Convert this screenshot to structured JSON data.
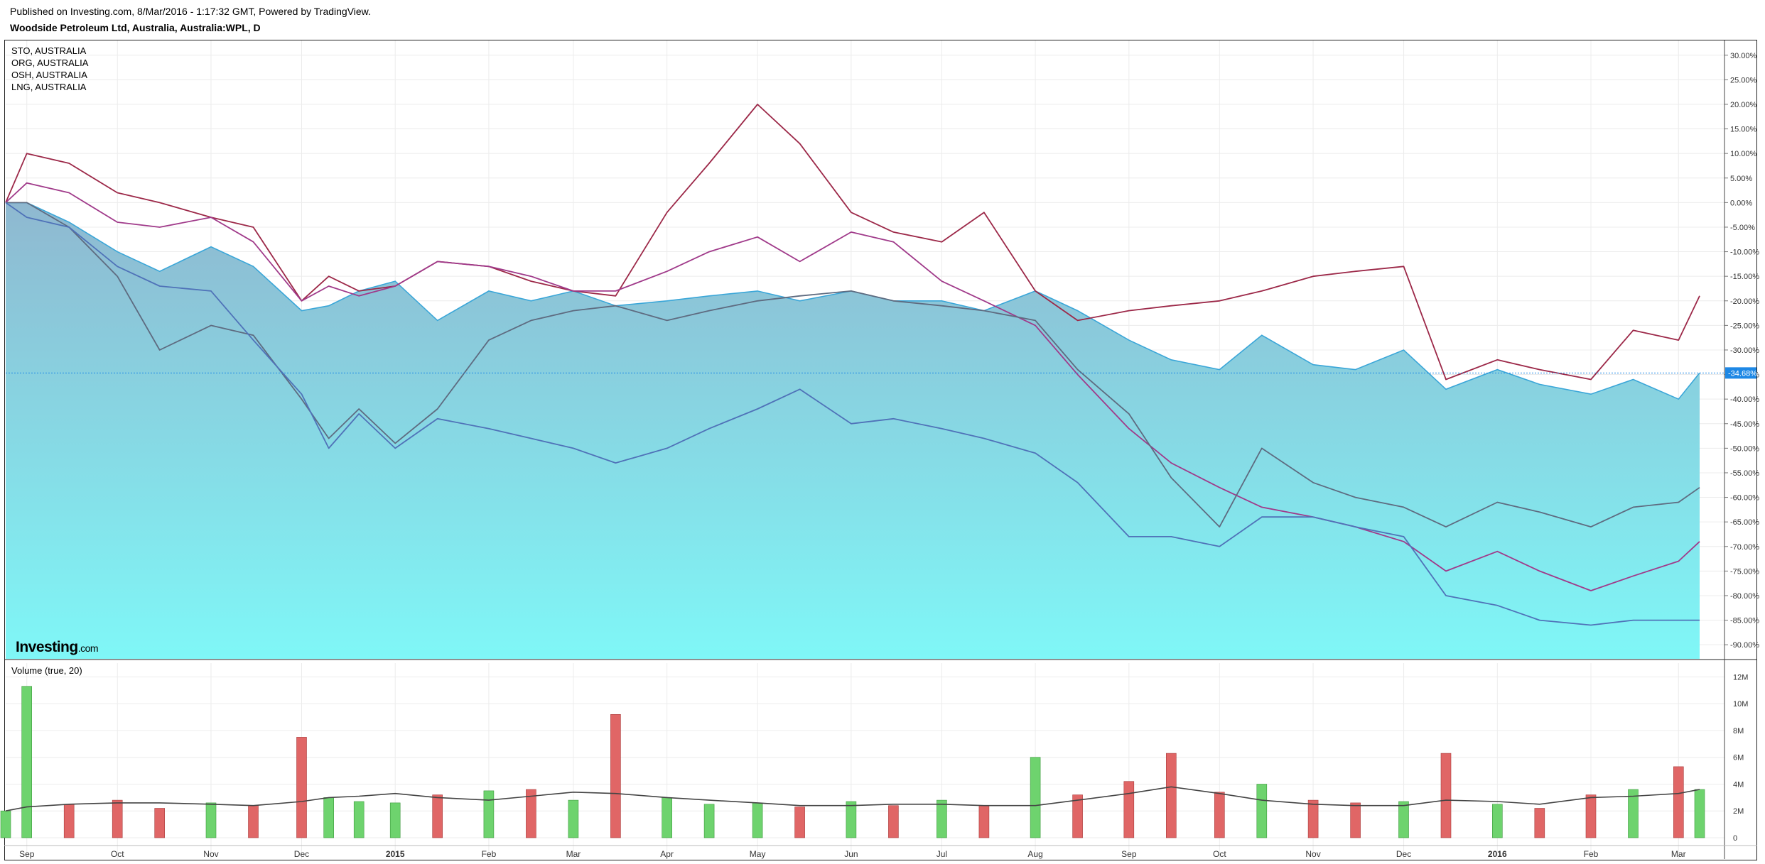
{
  "header": {
    "published": "Published on Investing.com, 8/Mar/2016 - 1:17:32 GMT, Powered by TradingView.",
    "symbol": "Woodside Petroleum Ltd, Australia, Australia:WPL, D"
  },
  "legend": [
    "STO, AUSTRALIA",
    "ORG, AUSTRALIA",
    "OSH, AUSTRALIA",
    "LNG, AUSTRALIA"
  ],
  "logo": {
    "name": "Investing",
    "suffix": ".com"
  },
  "colors": {
    "area_top": "#8fb8d0",
    "area_bottom": "#7ff7f7",
    "area_line": "#3aa6d8",
    "line_red": "#9c2848",
    "line_purple": "#a03a8a",
    "line_dark": "#5e6b80",
    "line_blue": "#4f72b8",
    "vol_up": "#6ed36e",
    "vol_down": "#e06666",
    "vol_ma": "#444444",
    "current_label": "#1e88e5"
  },
  "chart_data": [
    {
      "type": "area",
      "title": "Woodside Petroleum Ltd, Australia, Australia:WPL, D",
      "y_unit": "% change",
      "ylim": [
        -92,
        33
      ],
      "y_ticks": [
        "30.00%",
        "25.00%",
        "20.00%",
        "15.00%",
        "10.00%",
        "5.00%",
        "0.00%",
        "-5.00%",
        "-10.00%",
        "-15.00%",
        "-20.00%",
        "-25.00%",
        "-30.00%",
        "-35.00%",
        "-40.00%",
        "-45.00%",
        "-50.00%",
        "-55.00%",
        "-60.00%",
        "-65.00%",
        "-70.00%",
        "-75.00%",
        "-80.00%",
        "-85.00%",
        "-90.00%"
      ],
      "x_ticks": [
        "Sep",
        "Oct",
        "Nov",
        "Dec",
        "2015",
        "Feb",
        "Mar",
        "Apr",
        "May",
        "Jun",
        "Jul",
        "Aug",
        "Sep",
        "Oct",
        "Nov",
        "Dec",
        "2016",
        "Feb",
        "Mar"
      ],
      "current_value": "-34.68%",
      "grid": true,
      "legend_position": "top-left",
      "x": [
        "2014-08-25",
        "2014-09-01",
        "2014-09-15",
        "2014-10-01",
        "2014-10-15",
        "2014-11-01",
        "2014-11-15",
        "2014-12-01",
        "2014-12-10",
        "2014-12-20",
        "2015-01-01",
        "2015-01-15",
        "2015-02-01",
        "2015-02-15",
        "2015-03-01",
        "2015-03-15",
        "2015-04-01",
        "2015-04-15",
        "2015-05-01",
        "2015-05-15",
        "2015-06-01",
        "2015-06-15",
        "2015-07-01",
        "2015-07-15",
        "2015-08-01",
        "2015-08-15",
        "2015-09-01",
        "2015-09-15",
        "2015-10-01",
        "2015-10-15",
        "2015-11-01",
        "2015-11-15",
        "2015-12-01",
        "2015-12-15",
        "2016-01-01",
        "2016-01-15",
        "2016-02-01",
        "2016-02-15",
        "2016-03-01",
        "2016-03-08"
      ],
      "series": [
        {
          "name": "WPL",
          "values": [
            0,
            0,
            -4,
            -10,
            -14,
            -9,
            -13,
            -22,
            -21,
            -18,
            -16,
            -24,
            -18,
            -20,
            -18,
            -21,
            -20,
            -19,
            -18,
            -20,
            -18,
            -20,
            -20,
            -22,
            -18,
            -22,
            -28,
            -32,
            -34,
            -27,
            -33,
            -34,
            -30,
            -38,
            -34,
            -37,
            -39,
            -36,
            -40,
            -34.68
          ]
        },
        {
          "name": "STO, AUSTRALIA",
          "values": [
            0,
            10,
            8,
            2,
            0,
            -3,
            -5,
            -20,
            -15,
            -18,
            -17,
            -12,
            -13,
            -16,
            -18,
            -19,
            -2,
            8,
            20,
            12,
            -2,
            -6,
            -8,
            -2,
            -18,
            -24,
            -22,
            -21,
            -20,
            -18,
            -15,
            -14,
            -13,
            -36,
            -32,
            -34,
            -36,
            -26,
            -28,
            -19
          ]
        },
        {
          "name": "ORG, AUSTRALIA",
          "values": [
            0,
            4,
            2,
            -4,
            -5,
            -3,
            -8,
            -20,
            -17,
            -19,
            -17,
            -12,
            -13,
            -15,
            -18,
            -18,
            -14,
            -10,
            -7,
            -12,
            -6,
            -8,
            -16,
            -20,
            -25,
            -35,
            -46,
            -53,
            -58,
            -62,
            -64,
            -66,
            -69,
            -75,
            -71,
            -75,
            -79,
            -76,
            -73,
            -69
          ]
        },
        {
          "name": "OSH, AUSTRALIA",
          "values": [
            0,
            0,
            -5,
            -15,
            -30,
            -25,
            -27,
            -40,
            -48,
            -42,
            -49,
            -42,
            -28,
            -24,
            -22,
            -21,
            -24,
            -22,
            -20,
            -19,
            -18,
            -20,
            -21,
            -22,
            -24,
            -34,
            -43,
            -56,
            -66,
            -50,
            -57,
            -60,
            -62,
            -66,
            -61,
            -63,
            -66,
            -62,
            -61,
            -58
          ]
        },
        {
          "name": "LNG, AUSTRALIA",
          "values": [
            0,
            -3,
            -5,
            -13,
            -17,
            -18,
            -28,
            -39,
            -50,
            -43,
            -50,
            -44,
            -46,
            -48,
            -50,
            -53,
            -50,
            -46,
            -42,
            -38,
            -45,
            -44,
            -46,
            -48,
            -51,
            -57,
            -68,
            -68,
            -70,
            -64,
            -64,
            -66,
            -68,
            -80,
            -82,
            -85,
            -86,
            -85,
            -85,
            -85
          ]
        }
      ]
    },
    {
      "type": "bar",
      "title": "Volume (true, 20)",
      "y_unit": "shares",
      "ylim": [
        0,
        12500000
      ],
      "y_ticks": [
        "12M",
        "10M",
        "8M",
        "6M",
        "4M",
        "2M",
        "0"
      ],
      "x": [
        "2014-08-25",
        "2014-09-01",
        "2014-09-15",
        "2014-10-01",
        "2014-10-15",
        "2014-11-01",
        "2014-11-15",
        "2014-12-01",
        "2014-12-10",
        "2014-12-20",
        "2015-01-01",
        "2015-01-15",
        "2015-02-01",
        "2015-02-15",
        "2015-03-01",
        "2015-03-15",
        "2015-04-01",
        "2015-04-15",
        "2015-05-01",
        "2015-05-15",
        "2015-06-01",
        "2015-06-15",
        "2015-07-01",
        "2015-07-15",
        "2015-08-01",
        "2015-08-15",
        "2015-09-01",
        "2015-09-15",
        "2015-10-01",
        "2015-10-15",
        "2015-11-01",
        "2015-11-15",
        "2015-12-01",
        "2015-12-15",
        "2016-01-01",
        "2016-01-15",
        "2016-02-01",
        "2016-02-15",
        "2016-03-01",
        "2016-03-08"
      ],
      "series": [
        {
          "name": "Volume",
          "values": [
            2000000,
            11300000,
            2500000,
            2800000,
            2200000,
            2600000,
            2400000,
            7500000,
            3000000,
            2700000,
            2600000,
            3200000,
            3500000,
            3600000,
            2800000,
            9200000,
            3000000,
            2500000,
            2600000,
            2300000,
            2700000,
            2400000,
            2800000,
            2400000,
            6000000,
            3200000,
            4200000,
            6300000,
            3400000,
            4000000,
            2800000,
            2600000,
            2700000,
            6300000,
            2500000,
            2200000,
            3200000,
            3600000,
            5300000,
            3600000
          ]
        },
        {
          "name": "Volume MA 20",
          "values": [
            2000000,
            2300000,
            2500000,
            2600000,
            2600000,
            2500000,
            2400000,
            2700000,
            3000000,
            3100000,
            3300000,
            3000000,
            2800000,
            3100000,
            3400000,
            3300000,
            3000000,
            2800000,
            2600000,
            2400000,
            2400000,
            2500000,
            2500000,
            2400000,
            2400000,
            2800000,
            3300000,
            3800000,
            3300000,
            2800000,
            2500000,
            2400000,
            2400000,
            2800000,
            2700000,
            2500000,
            3000000,
            3100000,
            3300000,
            3600000
          ]
        }
      ]
    }
  ]
}
